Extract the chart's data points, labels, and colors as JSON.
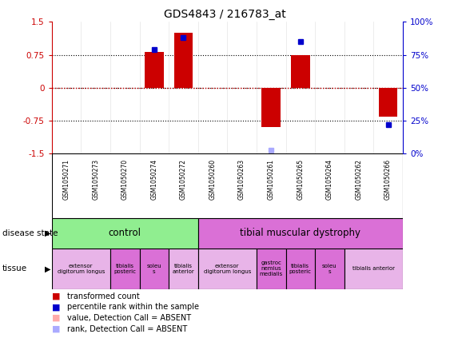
{
  "title": "GDS4843 / 216783_at",
  "samples": [
    "GSM1050271",
    "GSM1050273",
    "GSM1050270",
    "GSM1050274",
    "GSM1050272",
    "GSM1050260",
    "GSM1050263",
    "GSM1050261",
    "GSM1050265",
    "GSM1050264",
    "GSM1050262",
    "GSM1050266"
  ],
  "red_values": [
    0.0,
    0.0,
    0.0,
    0.82,
    1.25,
    0.0,
    0.0,
    -0.9,
    0.75,
    0.0,
    0.0,
    -0.65
  ],
  "blue_values": [
    null,
    null,
    null,
    79,
    88,
    null,
    null,
    3,
    85,
    null,
    null,
    22
  ],
  "blue_absent": [
    false,
    false,
    false,
    false,
    false,
    false,
    false,
    true,
    false,
    false,
    false,
    false
  ],
  "red_absent": [
    false,
    false,
    false,
    false,
    false,
    false,
    false,
    false,
    false,
    false,
    false,
    false
  ],
  "ylim_left": [
    -1.5,
    1.5
  ],
  "ylim_right": [
    0,
    100
  ],
  "yticks_left": [
    -1.5,
    -0.75,
    0.0,
    0.75,
    1.5
  ],
  "yticks_right": [
    0,
    25,
    50,
    75,
    100
  ],
  "ytick_labels_left": [
    "-1.5",
    "-0.75",
    "0",
    "0.75",
    "1.5"
  ],
  "ytick_labels_right": [
    "0%",
    "25%",
    "50%",
    "75%",
    "100%"
  ],
  "disease_state_groups": [
    {
      "label": "control",
      "start": 0,
      "end": 5,
      "color": "#90ee90"
    },
    {
      "label": "tibial muscular dystrophy",
      "start": 5,
      "end": 12,
      "color": "#da70d6"
    }
  ],
  "tissue_groups": [
    {
      "label": "extensor\ndigitorum longus",
      "start": 0,
      "end": 2,
      "color": "#e8b4e8"
    },
    {
      "label": "tibialis\nposteric",
      "start": 2,
      "end": 3,
      "color": "#da70d6"
    },
    {
      "label": "soleu\ns",
      "start": 3,
      "end": 4,
      "color": "#da70d6"
    },
    {
      "label": "tibialis\nanterior",
      "start": 4,
      "end": 5,
      "color": "#e8b4e8"
    },
    {
      "label": "extensor\ndigitorum longus",
      "start": 5,
      "end": 7,
      "color": "#e8b4e8"
    },
    {
      "label": "gastroc\nnemius\nmedialis",
      "start": 7,
      "end": 8,
      "color": "#da70d6"
    },
    {
      "label": "tibialis\nposteric",
      "start": 8,
      "end": 9,
      "color": "#da70d6"
    },
    {
      "label": "soleu\ns",
      "start": 9,
      "end": 10,
      "color": "#da70d6"
    },
    {
      "label": "tibialis anterior",
      "start": 10,
      "end": 12,
      "color": "#e8b4e8"
    }
  ],
  "bar_color_red": "#cc0000",
  "bar_color_blue": "#0000cc",
  "bar_width": 0.65,
  "zero_line_color": "#cc0000",
  "bg_color": "#ffffff",
  "label_area_color": "#c8c8c8",
  "fig_width": 5.63,
  "fig_height": 4.23,
  "fig_dpi": 100
}
